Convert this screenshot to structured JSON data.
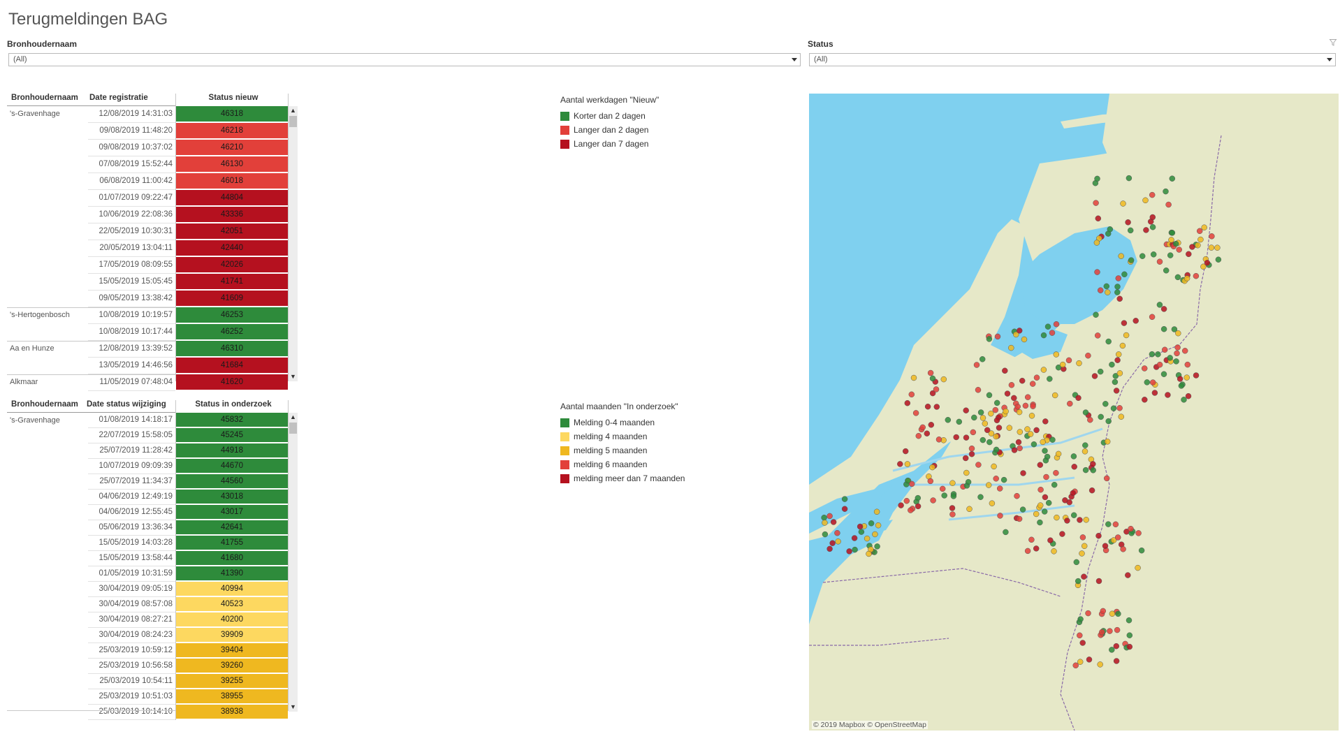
{
  "title": "Terugmeldingen BAG",
  "filters": {
    "bron": {
      "label": "Bronhoudernaam",
      "value": "(All)"
    },
    "status": {
      "label": "Status",
      "value": "(All)"
    }
  },
  "table1": {
    "headers": {
      "name": "Bronhoudernaam",
      "date": "Date registratie",
      "val": "Status nieuw"
    },
    "rows": [
      {
        "name": "'s-Gravenhage",
        "date": "12/08/2019 14:31:03",
        "val": "46318",
        "color": "#2e8b3b"
      },
      {
        "name": "",
        "date": "09/08/2019 11:48:20",
        "val": "46218",
        "color": "#e2403a"
      },
      {
        "name": "",
        "date": "09/08/2019 10:37:02",
        "val": "46210",
        "color": "#e2403a"
      },
      {
        "name": "",
        "date": "07/08/2019 15:52:44",
        "val": "46130",
        "color": "#e2403a"
      },
      {
        "name": "",
        "date": "06/08/2019 11:00:42",
        "val": "46018",
        "color": "#e2403a"
      },
      {
        "name": "",
        "date": "01/07/2019 09:22:47",
        "val": "44804",
        "color": "#b5111f"
      },
      {
        "name": "",
        "date": "10/06/2019 22:08:36",
        "val": "43336",
        "color": "#b5111f"
      },
      {
        "name": "",
        "date": "22/05/2019 10:30:31",
        "val": "42051",
        "color": "#b5111f"
      },
      {
        "name": "",
        "date": "20/05/2019 13:04:11",
        "val": "42440",
        "color": "#b5111f"
      },
      {
        "name": "",
        "date": "17/05/2019 08:09:55",
        "val": "42026",
        "color": "#b5111f"
      },
      {
        "name": "",
        "date": "15/05/2019 15:05:45",
        "val": "41741",
        "color": "#b5111f"
      },
      {
        "name": "",
        "date": "09/05/2019 13:38:42",
        "val": "41609",
        "color": "#b5111f"
      },
      {
        "name": "'s-Hertogenbosch",
        "date": "10/08/2019 10:19:57",
        "val": "46253",
        "color": "#2e8b3b"
      },
      {
        "name": "",
        "date": "10/08/2019 10:17:44",
        "val": "46252",
        "color": "#2e8b3b"
      },
      {
        "name": "Aa en Hunze",
        "date": "12/08/2019 13:39:52",
        "val": "46310",
        "color": "#2e8b3b"
      },
      {
        "name": "",
        "date": "13/05/2019 14:46:56",
        "val": "41684",
        "color": "#b5111f"
      },
      {
        "name": "Alkmaar",
        "date": "11/05/2019 07:48:04",
        "val": "41620",
        "color": "#b5111f"
      }
    ]
  },
  "table2": {
    "headers": {
      "name": "Bronhoudernaam",
      "date": "Date status wijziging",
      "val": "Status in onderzoek"
    },
    "rows": [
      {
        "name": "'s-Gravenhage",
        "date": "01/08/2019 14:18:17",
        "val": "45832",
        "color": "#2e8b3b"
      },
      {
        "name": "",
        "date": "22/07/2019 15:58:05",
        "val": "45245",
        "color": "#2e8b3b"
      },
      {
        "name": "",
        "date": "25/07/2019 11:28:42",
        "val": "44918",
        "color": "#2e8b3b"
      },
      {
        "name": "",
        "date": "10/07/2019 09:09:39",
        "val": "44670",
        "color": "#2e8b3b"
      },
      {
        "name": "",
        "date": "25/07/2019 11:34:37",
        "val": "44560",
        "color": "#2e8b3b"
      },
      {
        "name": "",
        "date": "04/06/2019 12:49:19",
        "val": "43018",
        "color": "#2e8b3b"
      },
      {
        "name": "",
        "date": "04/06/2019 12:55:45",
        "val": "43017",
        "color": "#2e8b3b"
      },
      {
        "name": "",
        "date": "05/06/2019 13:36:34",
        "val": "42641",
        "color": "#2e8b3b"
      },
      {
        "name": "",
        "date": "15/05/2019 14:03:28",
        "val": "41755",
        "color": "#2e8b3b"
      },
      {
        "name": "",
        "date": "15/05/2019 13:58:44",
        "val": "41680",
        "color": "#2e8b3b"
      },
      {
        "name": "",
        "date": "01/05/2019 10:31:59",
        "val": "41390",
        "color": "#2e8b3b"
      },
      {
        "name": "",
        "date": "30/04/2019 09:05:19",
        "val": "40994",
        "color": "#fdd860"
      },
      {
        "name": "",
        "date": "30/04/2019 08:57:08",
        "val": "40523",
        "color": "#fdd860"
      },
      {
        "name": "",
        "date": "30/04/2019 08:27:21",
        "val": "40200",
        "color": "#fdd860"
      },
      {
        "name": "",
        "date": "30/04/2019 08:24:23",
        "val": "39909",
        "color": "#fdd860"
      },
      {
        "name": "",
        "date": "25/03/2019 10:59:12",
        "val": "39404",
        "color": "#efb820"
      },
      {
        "name": "",
        "date": "25/03/2019 10:56:58",
        "val": "39260",
        "color": "#efb820"
      },
      {
        "name": "",
        "date": "25/03/2019 10:54:11",
        "val": "39255",
        "color": "#efb820"
      },
      {
        "name": "",
        "date": "25/03/2019 10:51:03",
        "val": "38955",
        "color": "#efb820"
      },
      {
        "name": "",
        "date": "25/03/2019 10:14:10",
        "val": "38938",
        "color": "#efb820"
      }
    ]
  },
  "legend1": {
    "title": "Aantal werkdagen \"Nieuw\"",
    "items": [
      {
        "label": "Korter dan 2 dagen",
        "color": "#2e8b3b"
      },
      {
        "label": "Langer dan 2 dagen",
        "color": "#e2403a"
      },
      {
        "label": "Langer dan 7 dagen",
        "color": "#b5111f"
      }
    ]
  },
  "legend2": {
    "title": "Aantal maanden \"In onderzoek\"",
    "items": [
      {
        "label": "Melding 0-4 maanden",
        "color": "#2e8b3b"
      },
      {
        "label": "melding 4 maanden",
        "color": "#fdd860"
      },
      {
        "label": "melding 5 maanden",
        "color": "#efb820"
      },
      {
        "label": "melding 6 maanden",
        "color": "#e2403a"
      },
      {
        "label": "melding meer dan 7 maanden",
        "color": "#b5111f"
      }
    ]
  },
  "map": {
    "credit": "© 2019 Mapbox © OpenStreetMap"
  }
}
